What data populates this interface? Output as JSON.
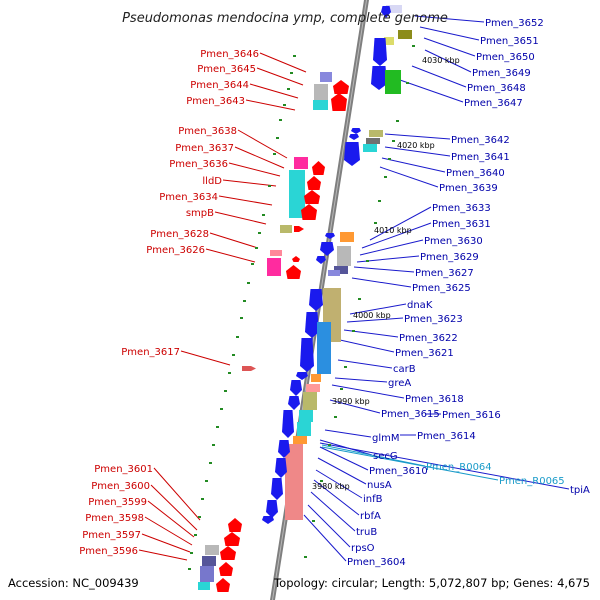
{
  "title": "Pseudomonas mendocina ymp, complete genome",
  "accession": "Accession: NC_009439",
  "topology": "Topology: circular; Length: 5,072,807 bp; Genes: 4,675",
  "colors": {
    "forward": "#ff0000",
    "reverse": "#1a1aee",
    "backbone": "#808080",
    "rna_label": "#1a9bc9",
    "dots": "#228b22"
  },
  "kbp_ticks": [
    "4030 kbp",
    "4020 kbp",
    "4010 kbp",
    "4000 kbp",
    "3990 kbp",
    "3980 kbp"
  ],
  "left_labels": [
    "Pmen_3646",
    "Pmen_3645",
    "Pmen_3644",
    "Pmen_3643",
    "Pmen_3638",
    "Pmen_3637",
    "Pmen_3636",
    "lldD",
    "Pmen_3634",
    "smpB",
    "Pmen_3628",
    "Pmen_3626",
    "Pmen_3617",
    "Pmen_3601",
    "Pmen_3600",
    "Pmen_3599",
    "Pmen_3598",
    "Pmen_3597",
    "Pmen_3596"
  ],
  "right_labels": [
    "Pmen_3652",
    "Pmen_3651",
    "Pmen_3650",
    "Pmen_3649",
    "Pmen_3648",
    "Pmen_3647",
    "Pmen_3642",
    "Pmen_3641",
    "Pmen_3640",
    "Pmen_3639",
    "Pmen_3633",
    "Pmen_3631",
    "Pmen_3630",
    "Pmen_3629",
    "Pmen_3627",
    "Pmen_3625",
    "dnaK",
    "Pmen_3623",
    "Pmen_3622",
    "Pmen_3621",
    "carB",
    "greA",
    "Pmen_3618",
    "Pmen_3615",
    "Pmen_3616",
    "glmM",
    "Pmen_3614",
    "secG",
    "Pmen_3610",
    "nusA",
    "infB",
    "rbfA",
    "truB",
    "rpsO",
    "Pmen_3604",
    "tpiA"
  ],
  "rna_labels": [
    "Pmen_R0064",
    "Pmen_R0065"
  ]
}
